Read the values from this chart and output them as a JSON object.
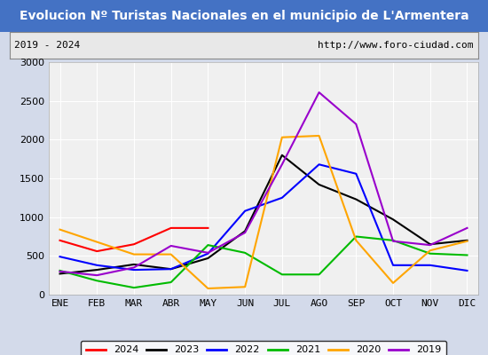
{
  "title": "Evolucion Nº Turistas Nacionales en el municipio de L'Armentera",
  "subtitle_left": "2019 - 2024",
  "subtitle_right": "http://www.foro-ciudad.com",
  "months": [
    "ENE",
    "FEB",
    "MAR",
    "ABR",
    "MAY",
    "JUN",
    "JUL",
    "AGO",
    "SEP",
    "OCT",
    "NOV",
    "DIC"
  ],
  "series": {
    "2024": [
      700,
      560,
      650,
      860,
      860,
      null,
      null,
      null,
      null,
      null,
      null,
      null
    ],
    "2023": [
      270,
      320,
      390,
      330,
      470,
      820,
      1800,
      1420,
      1230,
      970,
      650,
      700
    ],
    "2022": [
      490,
      380,
      320,
      330,
      530,
      1080,
      1250,
      1680,
      1560,
      380,
      380,
      310
    ],
    "2021": [
      310,
      180,
      90,
      160,
      640,
      540,
      260,
      260,
      750,
      700,
      530,
      510
    ],
    "2020": [
      840,
      680,
      520,
      520,
      80,
      100,
      2030,
      2050,
      700,
      150,
      570,
      690
    ],
    "2019": [
      300,
      250,
      350,
      630,
      540,
      800,
      1680,
      2610,
      2200,
      690,
      640,
      860
    ]
  },
  "colors": {
    "2024": "#ff0000",
    "2023": "#000000",
    "2022": "#0000ff",
    "2021": "#00bb00",
    "2020": "#ffa500",
    "2019": "#9900cc"
  },
  "ylim": [
    0,
    3000
  ],
  "yticks": [
    0,
    500,
    1000,
    1500,
    2000,
    2500,
    3000
  ],
  "title_bg_color": "#4472c4",
  "title_text_color": "#ffffff",
  "plot_bg_color": "#f0f0f0",
  "grid_color": "#ffffff",
  "outer_bg_color": "#d3daea",
  "legend_fontsize": 8,
  "title_fontsize": 10,
  "axis_label_fontsize": 8
}
